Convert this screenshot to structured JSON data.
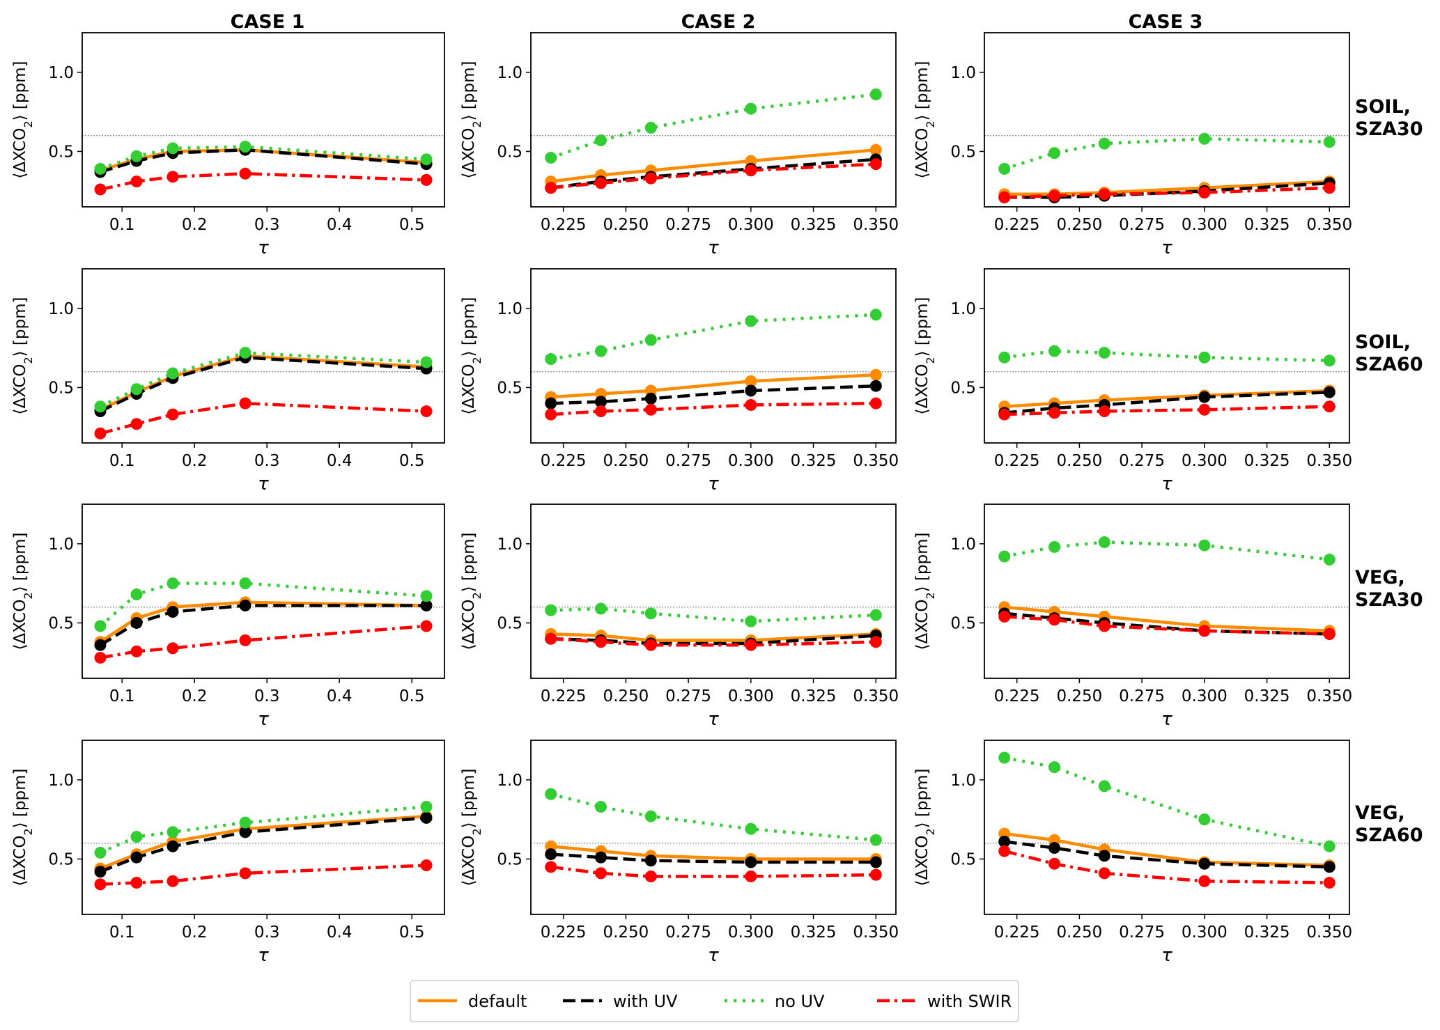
{
  "figure": {
    "column_titles": [
      "CASE 1",
      "CASE 2",
      "CASE 3"
    ],
    "row_labels": [
      [
        "SOIL,",
        "SZA30"
      ],
      [
        "SOIL,",
        "SZA60"
      ],
      [
        "VEG,",
        "SZA30"
      ],
      [
        "VEG,",
        "SZA60"
      ]
    ],
    "xlabel": "τ",
    "ylabel_parts": [
      "⟨ΔXCO",
      "2",
      "⟩ [ppm]"
    ],
    "reference_line_y": 0.6,
    "legend": {
      "location": "bottom-center",
      "entries": [
        {
          "label": "default",
          "style": "solid",
          "color": "#ff8c00"
        },
        {
          "label": "with UV",
          "style": "dashed",
          "color": "#000000"
        },
        {
          "label": "no UV",
          "style": "dotted",
          "color": "#32cd32"
        },
        {
          "label": "with SWIR",
          "style": "dashdot",
          "color": "#ff0000"
        }
      ]
    }
  },
  "chart_data": [
    {
      "type": "line",
      "case": "CASE 1",
      "row": "SOIL, SZA30",
      "x": [
        0.07,
        0.12,
        0.17,
        0.27,
        0.52
      ],
      "xlim": [
        0.045,
        0.545
      ],
      "xticks": [
        0.1,
        0.2,
        0.3,
        0.4,
        0.5
      ],
      "xticklabels": [
        "0.1",
        "0.2",
        "0.3",
        "0.4",
        "0.5"
      ],
      "ylim": [
        0.15,
        1.25
      ],
      "yticks": [
        0.5,
        1.0
      ],
      "yticklabels": [
        "0.5",
        "1.0"
      ],
      "series": [
        {
          "name": "default",
          "values": [
            0.38,
            0.45,
            0.5,
            0.51,
            0.43
          ]
        },
        {
          "name": "with UV",
          "values": [
            0.37,
            0.44,
            0.49,
            0.51,
            0.42
          ]
        },
        {
          "name": "no UV",
          "values": [
            0.39,
            0.47,
            0.52,
            0.53,
            0.45
          ]
        },
        {
          "name": "with SWIR",
          "values": [
            0.26,
            0.31,
            0.34,
            0.36,
            0.32
          ]
        }
      ]
    },
    {
      "type": "line",
      "case": "CASE 2",
      "row": "SOIL, SZA30",
      "x": [
        0.22,
        0.24,
        0.26,
        0.3,
        0.35
      ],
      "xlim": [
        0.212,
        0.358
      ],
      "xticks": [
        0.225,
        0.25,
        0.275,
        0.3,
        0.325,
        0.35
      ],
      "xticklabels": [
        "0.225",
        "0.250",
        "0.275",
        "0.300",
        "0.325",
        "0.350"
      ],
      "ylim": [
        0.15,
        1.25
      ],
      "yticks": [
        0.5,
        1.0
      ],
      "yticklabels": [
        "0.5",
        "1.0"
      ],
      "series": [
        {
          "name": "default",
          "values": [
            0.31,
            0.35,
            0.38,
            0.44,
            0.51
          ]
        },
        {
          "name": "with UV",
          "values": [
            0.27,
            0.31,
            0.34,
            0.39,
            0.45
          ]
        },
        {
          "name": "no UV",
          "values": [
            0.46,
            0.57,
            0.65,
            0.77,
            0.86
          ]
        },
        {
          "name": "with SWIR",
          "values": [
            0.27,
            0.3,
            0.33,
            0.38,
            0.42
          ]
        }
      ]
    },
    {
      "type": "line",
      "case": "CASE 3",
      "row": "SOIL, SZA30",
      "x": [
        0.22,
        0.24,
        0.26,
        0.3,
        0.35
      ],
      "xlim": [
        0.212,
        0.358
      ],
      "xticks": [
        0.225,
        0.25,
        0.275,
        0.3,
        0.325,
        0.35
      ],
      "xticklabels": [
        "0.225",
        "0.250",
        "0.275",
        "0.300",
        "0.325",
        "0.350"
      ],
      "ylim": [
        0.15,
        1.25
      ],
      "yticks": [
        0.5,
        1.0
      ],
      "yticklabels": [
        "0.5",
        "1.0"
      ],
      "series": [
        {
          "name": "default",
          "values": [
            0.23,
            0.23,
            0.24,
            0.27,
            0.31
          ]
        },
        {
          "name": "with UV",
          "values": [
            0.21,
            0.21,
            0.22,
            0.25,
            0.3
          ]
        },
        {
          "name": "no UV",
          "values": [
            0.39,
            0.49,
            0.55,
            0.58,
            0.56
          ]
        },
        {
          "name": "with SWIR",
          "values": [
            0.21,
            0.22,
            0.23,
            0.24,
            0.27
          ]
        }
      ]
    },
    {
      "type": "line",
      "case": "CASE 1",
      "row": "SOIL, SZA60",
      "x": [
        0.07,
        0.12,
        0.17,
        0.27,
        0.52
      ],
      "xlim": [
        0.045,
        0.545
      ],
      "xticks": [
        0.1,
        0.2,
        0.3,
        0.4,
        0.5
      ],
      "xticklabels": [
        "0.1",
        "0.2",
        "0.3",
        "0.4",
        "0.5"
      ],
      "ylim": [
        0.15,
        1.25
      ],
      "yticks": [
        0.5,
        1.0
      ],
      "yticklabels": [
        "0.5",
        "1.0"
      ],
      "series": [
        {
          "name": "default",
          "values": [
            0.36,
            0.47,
            0.57,
            0.7,
            0.63
          ]
        },
        {
          "name": "with UV",
          "values": [
            0.35,
            0.46,
            0.56,
            0.69,
            0.62
          ]
        },
        {
          "name": "no UV",
          "values": [
            0.38,
            0.49,
            0.59,
            0.72,
            0.66
          ]
        },
        {
          "name": "with SWIR",
          "values": [
            0.21,
            0.27,
            0.33,
            0.4,
            0.35
          ]
        }
      ]
    },
    {
      "type": "line",
      "case": "CASE 2",
      "row": "SOIL, SZA60",
      "x": [
        0.22,
        0.24,
        0.26,
        0.3,
        0.35
      ],
      "xlim": [
        0.212,
        0.358
      ],
      "xticks": [
        0.225,
        0.25,
        0.275,
        0.3,
        0.325,
        0.35
      ],
      "xticklabels": [
        "0.225",
        "0.250",
        "0.275",
        "0.300",
        "0.325",
        "0.350"
      ],
      "ylim": [
        0.15,
        1.25
      ],
      "yticks": [
        0.5,
        1.0
      ],
      "yticklabels": [
        "0.5",
        "1.0"
      ],
      "series": [
        {
          "name": "default",
          "values": [
            0.44,
            0.46,
            0.48,
            0.54,
            0.58
          ]
        },
        {
          "name": "with UV",
          "values": [
            0.4,
            0.41,
            0.43,
            0.48,
            0.51
          ]
        },
        {
          "name": "no UV",
          "values": [
            0.68,
            0.73,
            0.8,
            0.92,
            0.96
          ]
        },
        {
          "name": "with SWIR",
          "values": [
            0.33,
            0.35,
            0.36,
            0.39,
            0.4
          ]
        }
      ]
    },
    {
      "type": "line",
      "case": "CASE 3",
      "row": "SOIL, SZA60",
      "x": [
        0.22,
        0.24,
        0.26,
        0.3,
        0.35
      ],
      "xlim": [
        0.212,
        0.358
      ],
      "xticks": [
        0.225,
        0.25,
        0.275,
        0.3,
        0.325,
        0.35
      ],
      "xticklabels": [
        "0.225",
        "0.250",
        "0.275",
        "0.300",
        "0.325",
        "0.350"
      ],
      "ylim": [
        0.15,
        1.25
      ],
      "yticks": [
        0.5,
        1.0
      ],
      "yticklabels": [
        "0.5",
        "1.0"
      ],
      "series": [
        {
          "name": "default",
          "values": [
            0.38,
            0.4,
            0.42,
            0.45,
            0.48
          ]
        },
        {
          "name": "with UV",
          "values": [
            0.34,
            0.37,
            0.39,
            0.44,
            0.47
          ]
        },
        {
          "name": "no UV",
          "values": [
            0.69,
            0.73,
            0.72,
            0.69,
            0.67
          ]
        },
        {
          "name": "with SWIR",
          "values": [
            0.33,
            0.34,
            0.35,
            0.36,
            0.38
          ]
        }
      ]
    },
    {
      "type": "line",
      "case": "CASE 1",
      "row": "VEG, SZA30",
      "x": [
        0.07,
        0.12,
        0.17,
        0.27,
        0.52
      ],
      "xlim": [
        0.045,
        0.545
      ],
      "xticks": [
        0.1,
        0.2,
        0.3,
        0.4,
        0.5
      ],
      "xticklabels": [
        "0.1",
        "0.2",
        "0.3",
        "0.4",
        "0.5"
      ],
      "ylim": [
        0.15,
        1.25
      ],
      "yticks": [
        0.5,
        1.0
      ],
      "yticklabels": [
        "0.5",
        "1.0"
      ],
      "series": [
        {
          "name": "default",
          "values": [
            0.38,
            0.53,
            0.6,
            0.63,
            0.61
          ]
        },
        {
          "name": "with UV",
          "values": [
            0.36,
            0.5,
            0.57,
            0.61,
            0.61
          ]
        },
        {
          "name": "no UV",
          "values": [
            0.48,
            0.68,
            0.75,
            0.75,
            0.67
          ]
        },
        {
          "name": "with SWIR",
          "values": [
            0.28,
            0.32,
            0.34,
            0.39,
            0.48
          ]
        }
      ]
    },
    {
      "type": "line",
      "case": "CASE 2",
      "row": "VEG, SZA30",
      "x": [
        0.22,
        0.24,
        0.26,
        0.3,
        0.35
      ],
      "xlim": [
        0.212,
        0.358
      ],
      "xticks": [
        0.225,
        0.25,
        0.275,
        0.3,
        0.325,
        0.35
      ],
      "xticklabels": [
        "0.225",
        "0.250",
        "0.275",
        "0.300",
        "0.325",
        "0.350"
      ],
      "ylim": [
        0.15,
        1.25
      ],
      "yticks": [
        0.5,
        1.0
      ],
      "yticklabels": [
        "0.5",
        "1.0"
      ],
      "series": [
        {
          "name": "default",
          "values": [
            0.43,
            0.42,
            0.39,
            0.39,
            0.43
          ]
        },
        {
          "name": "with UV",
          "values": [
            0.4,
            0.39,
            0.37,
            0.37,
            0.42
          ]
        },
        {
          "name": "no UV",
          "values": [
            0.58,
            0.59,
            0.56,
            0.51,
            0.55
          ]
        },
        {
          "name": "with SWIR",
          "values": [
            0.4,
            0.38,
            0.36,
            0.36,
            0.38
          ]
        }
      ]
    },
    {
      "type": "line",
      "case": "CASE 3",
      "row": "VEG, SZA30",
      "x": [
        0.22,
        0.24,
        0.26,
        0.3,
        0.35
      ],
      "xlim": [
        0.212,
        0.358
      ],
      "xticks": [
        0.225,
        0.25,
        0.275,
        0.3,
        0.325,
        0.35
      ],
      "xticklabels": [
        "0.225",
        "0.250",
        "0.275",
        "0.300",
        "0.325",
        "0.350"
      ],
      "ylim": [
        0.15,
        1.25
      ],
      "yticks": [
        0.5,
        1.0
      ],
      "yticklabels": [
        "0.5",
        "1.0"
      ],
      "series": [
        {
          "name": "default",
          "values": [
            0.6,
            0.57,
            0.54,
            0.48,
            0.45
          ]
        },
        {
          "name": "with UV",
          "values": [
            0.56,
            0.53,
            0.5,
            0.45,
            0.43
          ]
        },
        {
          "name": "no UV",
          "values": [
            0.92,
            0.98,
            1.01,
            0.99,
            0.9
          ]
        },
        {
          "name": "with SWIR",
          "values": [
            0.54,
            0.52,
            0.48,
            0.45,
            0.43
          ]
        }
      ]
    },
    {
      "type": "line",
      "case": "CASE 1",
      "row": "VEG, SZA60",
      "x": [
        0.07,
        0.12,
        0.17,
        0.27,
        0.52
      ],
      "xlim": [
        0.045,
        0.545
      ],
      "xticks": [
        0.1,
        0.2,
        0.3,
        0.4,
        0.5
      ],
      "xticklabels": [
        "0.1",
        "0.2",
        "0.3",
        "0.4",
        "0.5"
      ],
      "ylim": [
        0.15,
        1.25
      ],
      "yticks": [
        0.5,
        1.0
      ],
      "yticklabels": [
        "0.5",
        "1.0"
      ],
      "series": [
        {
          "name": "default",
          "values": [
            0.44,
            0.53,
            0.61,
            0.69,
            0.77
          ]
        },
        {
          "name": "with UV",
          "values": [
            0.42,
            0.51,
            0.58,
            0.67,
            0.76
          ]
        },
        {
          "name": "no UV",
          "values": [
            0.54,
            0.64,
            0.67,
            0.73,
            0.83
          ]
        },
        {
          "name": "with SWIR",
          "values": [
            0.34,
            0.35,
            0.36,
            0.41,
            0.46
          ]
        }
      ]
    },
    {
      "type": "line",
      "case": "CASE 2",
      "row": "VEG, SZA60",
      "x": [
        0.22,
        0.24,
        0.26,
        0.3,
        0.35
      ],
      "xlim": [
        0.212,
        0.358
      ],
      "xticks": [
        0.225,
        0.25,
        0.275,
        0.3,
        0.325,
        0.35
      ],
      "xticklabels": [
        "0.225",
        "0.250",
        "0.275",
        "0.300",
        "0.325",
        "0.350"
      ],
      "ylim": [
        0.15,
        1.25
      ],
      "yticks": [
        0.5,
        1.0
      ],
      "yticklabels": [
        "0.5",
        "1.0"
      ],
      "series": [
        {
          "name": "default",
          "values": [
            0.58,
            0.55,
            0.52,
            0.5,
            0.5
          ]
        },
        {
          "name": "with UV",
          "values": [
            0.53,
            0.51,
            0.49,
            0.48,
            0.48
          ]
        },
        {
          "name": "no UV",
          "values": [
            0.91,
            0.83,
            0.77,
            0.69,
            0.62
          ]
        },
        {
          "name": "with SWIR",
          "values": [
            0.45,
            0.41,
            0.39,
            0.39,
            0.4
          ]
        }
      ]
    },
    {
      "type": "line",
      "case": "CASE 3",
      "row": "VEG, SZA60",
      "x": [
        0.22,
        0.24,
        0.26,
        0.3,
        0.35
      ],
      "xlim": [
        0.212,
        0.358
      ],
      "xticks": [
        0.225,
        0.25,
        0.275,
        0.3,
        0.325,
        0.35
      ],
      "xticklabels": [
        "0.225",
        "0.250",
        "0.275",
        "0.300",
        "0.325",
        "0.350"
      ],
      "ylim": [
        0.15,
        1.25
      ],
      "yticks": [
        0.5,
        1.0
      ],
      "yticklabels": [
        "0.5",
        "1.0"
      ],
      "series": [
        {
          "name": "default",
          "values": [
            0.66,
            0.62,
            0.56,
            0.48,
            0.46
          ]
        },
        {
          "name": "with UV",
          "values": [
            0.61,
            0.57,
            0.52,
            0.47,
            0.45
          ]
        },
        {
          "name": "no UV",
          "values": [
            1.14,
            1.08,
            0.96,
            0.75,
            0.58
          ]
        },
        {
          "name": "with SWIR",
          "values": [
            0.55,
            0.47,
            0.41,
            0.36,
            0.35
          ]
        }
      ]
    }
  ]
}
